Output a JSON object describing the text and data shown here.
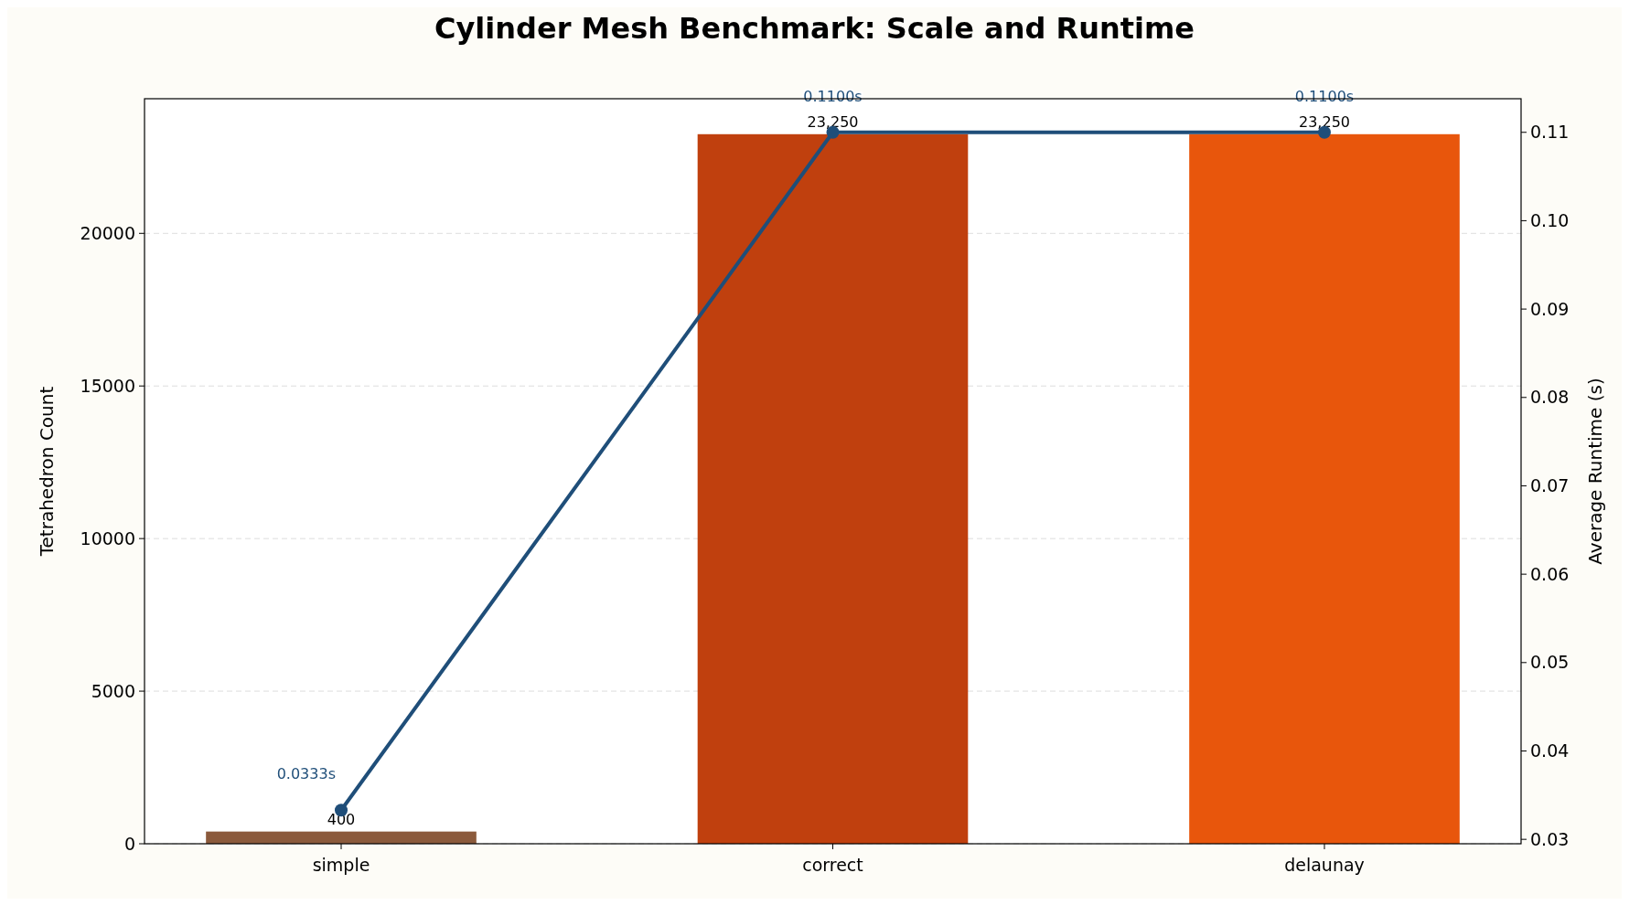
{
  "chart_data": {
    "type": "bar",
    "title": "Cylinder Mesh Benchmark: Scale and Runtime",
    "ylabel": "Tetrahedron Count",
    "y2label": "Average Runtime (s)",
    "categories": [
      "simple",
      "correct",
      "delaunay"
    ],
    "series": [
      {
        "colors": [
          "#8b5a3c",
          "#c0400e",
          "#e8560c"
        ],
        "values": [
          400,
          23250,
          23250
        ],
        "value_labels": [
          "400",
          "23,250",
          "23,250"
        ]
      },
      {
        "type": "line",
        "axis": "y2",
        "color": "#1f4e79",
        "values": [
          0.0333,
          0.11,
          0.11
        ],
        "value_labels": [
          "0.0333s",
          "0.1100s",
          "0.1100s"
        ]
      }
    ],
    "ylim": [
      0,
      24412
    ],
    "yticks": [
      0,
      5000,
      10000,
      15000,
      20000
    ],
    "y2lim": [
      0.0295,
      0.1138
    ],
    "y2ticks": [
      {
        "value": 0.03,
        "label": "0.03"
      },
      {
        "value": 0.04,
        "label": "0.04"
      },
      {
        "value": 0.05,
        "label": "0.05"
      },
      {
        "value": 0.06,
        "label": "0.06"
      },
      {
        "value": 0.07,
        "label": "0.07"
      },
      {
        "value": 0.08,
        "label": "0.08"
      },
      {
        "value": 0.09,
        "label": "0.09"
      },
      {
        "value": 0.1,
        "label": "0.10"
      },
      {
        "value": 0.11,
        "label": "0.11"
      }
    ],
    "grid": "y",
    "marker": "circle",
    "line_style": "solid"
  }
}
